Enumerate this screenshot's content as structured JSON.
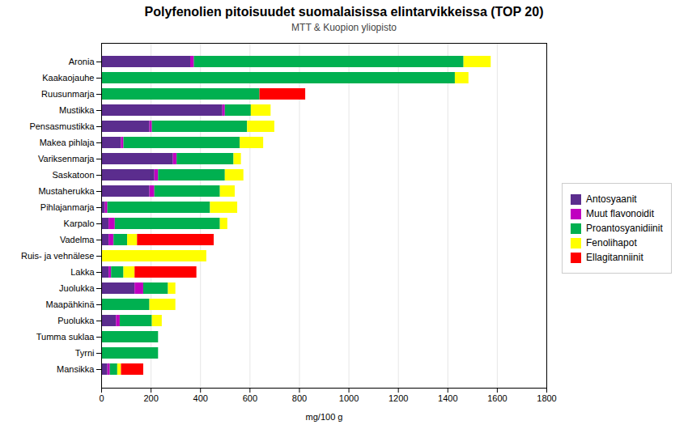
{
  "chart_data": {
    "type": "bar",
    "orientation": "horizontal",
    "stacked": true,
    "title": "Polyfenolien pitoisuudet suomalaisissa elintarvikkeissa (TOP 20)",
    "subtitle": "MTT & Kuopion yliopisto",
    "xlabel": "mg/100 g",
    "categories": [
      "Aronia",
      "Kaakaojauhe",
      "Ruusunmarja",
      "Mustikka",
      "Pensasmustikka",
      "Makea pihlaja",
      "Variksenmarja",
      "Saskatoon",
      "Mustaherukka",
      "Pihlajanmarja",
      "Karpalo",
      "Vadelma",
      "Ruis- ja vehnälese",
      "Lakka",
      "Juolukka",
      "Maapähkinä",
      "Puolukka",
      "Tumma suklaa",
      "Tyrni",
      "Mansikka"
    ],
    "series": [
      {
        "name": "Antosyaanit",
        "color": "#5b2d8e",
        "values": [
          360,
          0,
          0,
          490,
          195,
          80,
          290,
          215,
          195,
          15,
          30,
          30,
          0,
          30,
          135,
          0,
          60,
          0,
          0,
          25
        ]
      },
      {
        "name": "Muut flavonoidit",
        "color": "#c000c0",
        "values": [
          15,
          0,
          0,
          10,
          10,
          10,
          15,
          15,
          20,
          10,
          25,
          20,
          0,
          10,
          35,
          0,
          15,
          0,
          0,
          10
        ]
      },
      {
        "name": "Proantosyanidiinit",
        "color": "#00b050",
        "values": [
          1090,
          1430,
          640,
          105,
          385,
          470,
          230,
          270,
          265,
          415,
          425,
          55,
          0,
          50,
          100,
          195,
          130,
          230,
          230,
          30
        ]
      },
      {
        "name": "Fenolihapot",
        "color": "#ffff00",
        "values": [
          110,
          55,
          0,
          80,
          110,
          95,
          30,
          75,
          60,
          110,
          30,
          40,
          425,
          45,
          30,
          105,
          40,
          0,
          0,
          15
        ]
      },
      {
        "name": "Ellagitanniinit",
        "color": "#ff0000",
        "values": [
          0,
          0,
          185,
          0,
          0,
          0,
          0,
          0,
          0,
          0,
          0,
          310,
          0,
          250,
          0,
          0,
          0,
          0,
          0,
          90
        ]
      }
    ],
    "xlim": [
      0,
      1800
    ],
    "xticks": [
      0,
      200,
      400,
      600,
      800,
      1000,
      1200,
      1400,
      1600,
      1800
    ],
    "grid": true,
    "legend": "right"
  }
}
